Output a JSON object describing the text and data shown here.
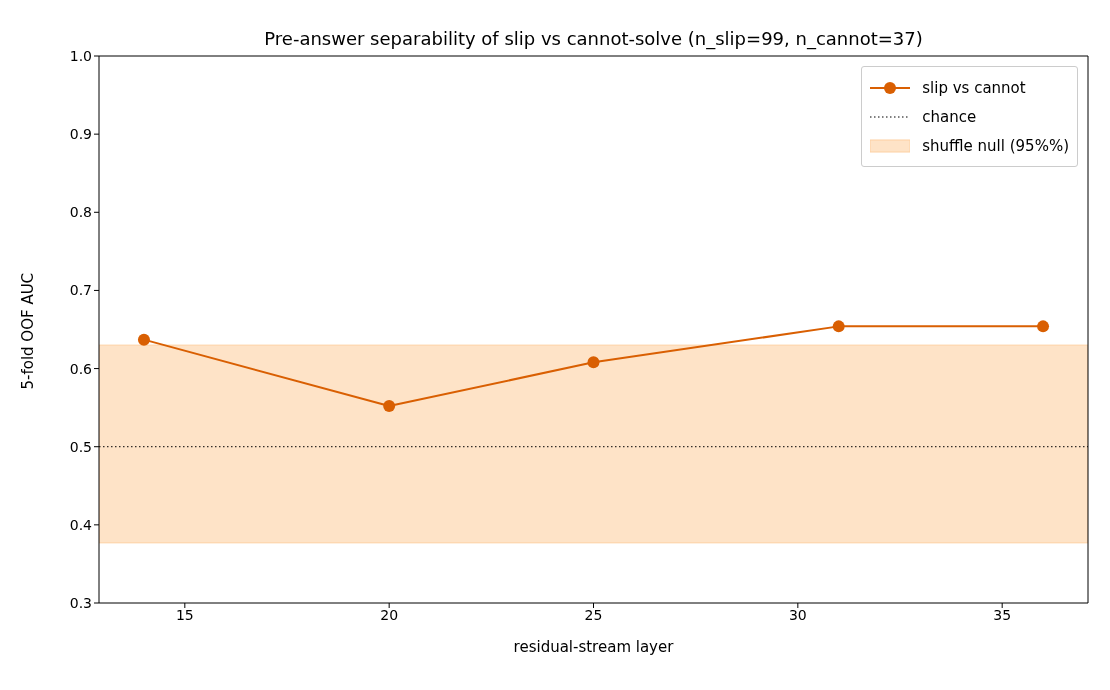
{
  "chart_data": {
    "type": "line",
    "title": "Pre-answer separability of slip vs cannot-solve (n_slip=99, n_cannot=37)",
    "xlabel": "residual-stream layer",
    "ylabel": "5-fold OOF AUC",
    "x": [
      14,
      20,
      25,
      31,
      36
    ],
    "series": [
      {
        "name": "slip vs cannot",
        "color": "#d95f02",
        "values": [
          0.637,
          0.552,
          0.608,
          0.654,
          0.654
        ]
      }
    ],
    "xlim": [
      12.9,
      37.1
    ],
    "xticks": [
      15,
      20,
      25,
      30,
      35
    ],
    "ylim": [
      0.3,
      1.0
    ],
    "yticks": [
      0.3,
      0.4,
      0.5,
      0.6,
      0.7,
      0.8,
      0.9,
      {
        "value": 1,
        "label": "1.0"
      }
    ],
    "ref_lines": [
      {
        "axis": "y",
        "value": 0.5,
        "label": "chance",
        "color": "#000000",
        "line_style": "dotted"
      }
    ],
    "bands": [
      {
        "axis": "y",
        "from": 0.377,
        "to": 0.63,
        "label": "shuffle null (95%%)",
        "color": "#fdd0a2"
      }
    ],
    "grid": false,
    "legend": "top right",
    "marker": "circle",
    "line_style": "solid"
  }
}
